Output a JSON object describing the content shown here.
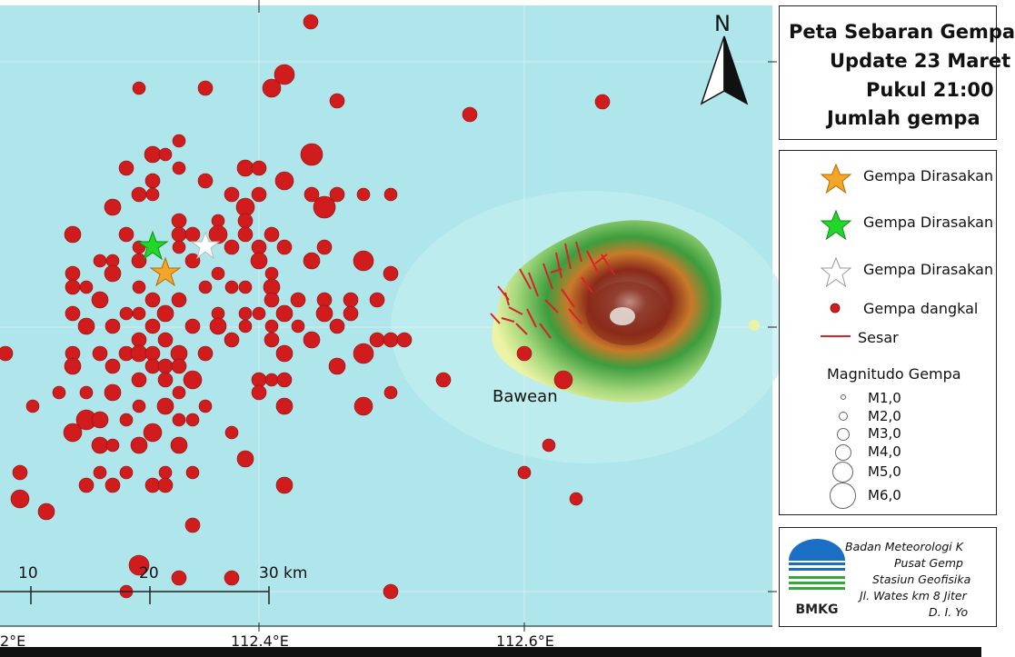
{
  "title_lines": [
    "Peta Sebaran Gempa",
    "Update 23 Maret",
    "Pukul 21:00",
    "Jumlah gempa"
  ],
  "legend": {
    "items": [
      {
        "label": "Gempa Dirasakan",
        "symbol": "star",
        "color": "#f4a52a"
      },
      {
        "label": "Gempa Dirasakan",
        "symbol": "star",
        "color": "#22d62a"
      },
      {
        "label": "Gempa Dirasakan",
        "symbol": "star",
        "color": "#ffffff"
      },
      {
        "label": "Gempa dangkal",
        "symbol": "dot",
        "color": "#d01c1c"
      },
      {
        "label": "Sesar",
        "symbol": "line",
        "color": "#d8232a"
      }
    ],
    "magnitude_title": "Magnitudo Gempa",
    "magnitudes": [
      "M1,0",
      "M2,0",
      "M3,0",
      "M4,0",
      "M5,0",
      "M6,0"
    ]
  },
  "agency": {
    "logo_text": "BMKG",
    "lines": [
      "Badan Meteorologi K",
      "Pusat Gemp",
      "Stasiun Geofisika",
      "Jl. Wates km 8 Jiter",
      "D. I. Yo"
    ]
  },
  "map": {
    "north_label": "N",
    "island_label": "Bawean",
    "lon_labels": [
      "2°E",
      "112.4°E",
      "112.6°E"
    ],
    "scale_labels": [
      "10",
      "20",
      "30 km"
    ],
    "colors": {
      "sea": "#aee6ec",
      "quake": "#d01c1c",
      "fault": "#d8232a",
      "land_low": "#ecf3a4",
      "land_mid": "#3d9d3d",
      "land_high": "#8a2a1a"
    }
  }
}
